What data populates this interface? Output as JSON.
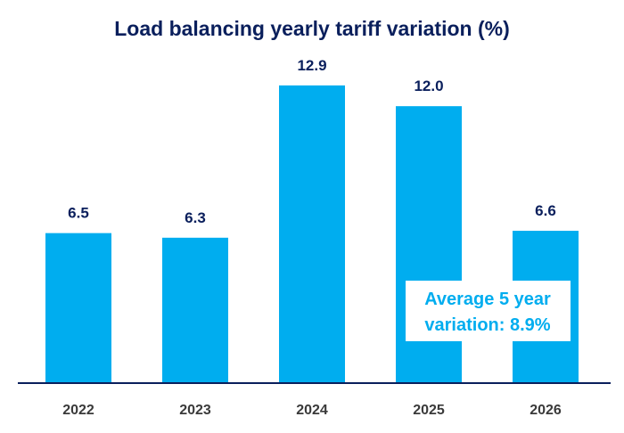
{
  "chart_data": {
    "type": "bar",
    "title": "Load balancing yearly tariff variation (%)",
    "xlabel": "",
    "ylabel": "",
    "categories": [
      "2022",
      "2023",
      "2024",
      "2025",
      "2026"
    ],
    "values": [
      6.5,
      6.3,
      12.9,
      12.0,
      6.6
    ],
    "value_labels": [
      "6.5",
      "6.3",
      "12.9",
      "12.0",
      "6.6"
    ],
    "ylim": [
      0,
      13.3
    ],
    "grid": false,
    "legend": "none",
    "annotation": {
      "lines": [
        "Average 5 year",
        "variation: 8.9%"
      ]
    }
  },
  "colors": {
    "bar": "#00ADEF",
    "title": "#0A1F5C",
    "label": "#0A1F5C",
    "tick": "#3A3A3A",
    "axis": "#0A1F5C",
    "annotation_text": "#00ADEF",
    "annotation_bg": "#FFFFFF"
  }
}
